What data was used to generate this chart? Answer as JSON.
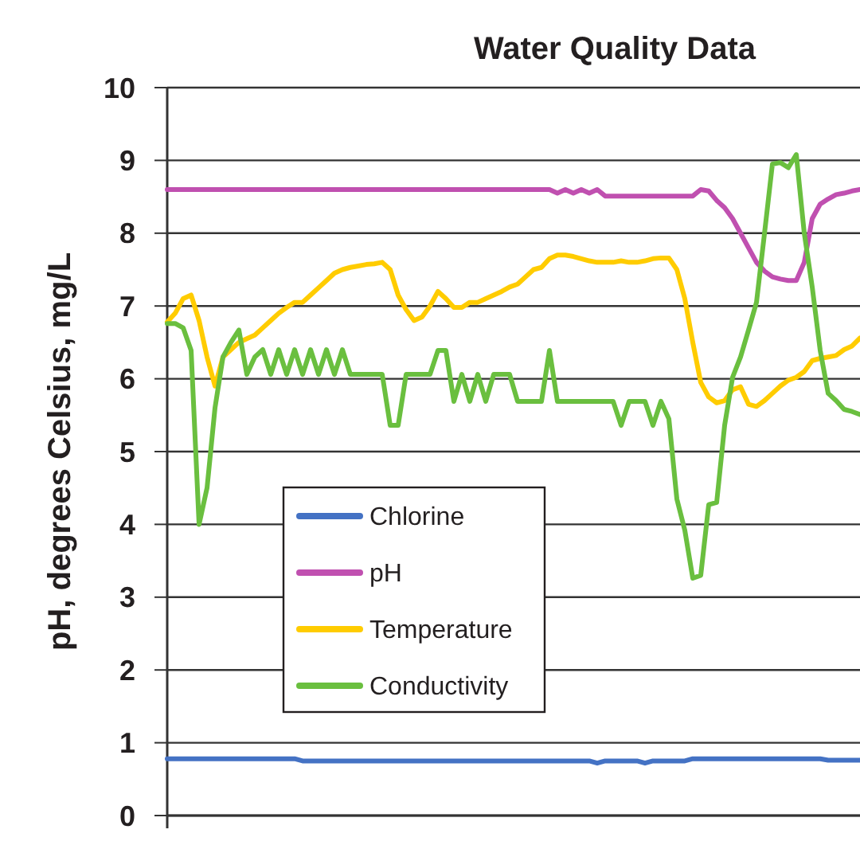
{
  "chart_data": {
    "type": "line",
    "title": "Water Quality Data",
    "ylabel": "pH, degrees Celsius, mg/L",
    "categories": [
      null,
      null,
      null,
      null,
      null,
      null,
      null,
      null,
      null,
      null,
      null,
      null,
      null,
      null,
      null,
      null,
      null,
      null,
      null,
      null,
      null,
      null,
      null,
      null,
      null,
      null,
      null,
      null,
      null,
      null,
      null,
      null,
      null,
      null,
      null,
      null,
      null,
      null,
      null,
      null,
      null,
      null,
      null,
      null,
      null,
      null,
      null,
      null,
      null,
      null,
      null,
      null,
      null,
      null,
      null,
      null,
      null,
      null,
      null,
      null,
      null,
      null,
      null,
      null,
      null,
      null,
      null,
      null,
      null,
      null,
      null,
      null,
      null,
      null,
      null,
      null,
      null,
      null,
      null,
      null,
      null,
      null,
      null,
      null,
      null,
      null,
      null,
      null
    ],
    "series": [
      {
        "name": "Chlorine",
        "color": "#4472c4",
        "values": [
          0.78,
          0.78,
          0.78,
          0.78,
          0.78,
          0.78,
          0.78,
          0.78,
          0.78,
          0.78,
          0.78,
          0.78,
          0.78,
          0.78,
          0.78,
          0.78,
          0.78,
          0.75,
          0.75,
          0.75,
          0.75,
          0.75,
          0.75,
          0.75,
          0.75,
          0.75,
          0.75,
          0.75,
          0.75,
          0.75,
          0.75,
          0.75,
          0.75,
          0.75,
          0.75,
          0.75,
          0.75,
          0.75,
          0.75,
          0.75,
          0.75,
          0.75,
          0.75,
          0.75,
          0.75,
          0.75,
          0.75,
          0.75,
          0.75,
          0.75,
          0.75,
          0.75,
          0.75,
          0.75,
          0.72,
          0.75,
          0.75,
          0.75,
          0.75,
          0.75,
          0.72,
          0.75,
          0.75,
          0.75,
          0.75,
          0.75,
          0.78,
          0.78,
          0.78,
          0.78,
          0.78,
          0.78,
          0.78,
          0.78,
          0.78,
          0.78,
          0.78,
          0.78,
          0.78,
          0.78,
          0.78,
          0.78,
          0.78,
          0.76,
          0.76,
          0.76,
          0.76,
          0.76
        ]
      },
      {
        "name": "pH",
        "color": "#c050b0",
        "values": [
          8.6,
          8.6,
          8.6,
          8.6,
          8.6,
          8.6,
          8.6,
          8.6,
          8.6,
          8.6,
          8.6,
          8.6,
          8.6,
          8.6,
          8.6,
          8.6,
          8.6,
          8.6,
          8.6,
          8.6,
          8.6,
          8.6,
          8.6,
          8.6,
          8.6,
          8.6,
          8.6,
          8.6,
          8.6,
          8.6,
          8.6,
          8.6,
          8.6,
          8.6,
          8.6,
          8.6,
          8.6,
          8.6,
          8.6,
          8.6,
          8.6,
          8.6,
          8.6,
          8.6,
          8.6,
          8.6,
          8.6,
          8.6,
          8.6,
          8.55,
          8.6,
          8.55,
          8.6,
          8.55,
          8.6,
          8.51,
          8.51,
          8.51,
          8.51,
          8.51,
          8.51,
          8.51,
          8.51,
          8.51,
          8.51,
          8.51,
          8.51,
          8.6,
          8.58,
          8.45,
          8.35,
          8.2,
          8.0,
          7.8,
          7.6,
          7.48,
          7.4,
          7.37,
          7.35,
          7.35,
          7.6,
          8.2,
          8.4,
          8.47,
          8.53,
          8.55,
          8.58,
          8.6
        ]
      },
      {
        "name": "Temperature",
        "color": "#ffcc00",
        "values": [
          6.78,
          6.9,
          7.1,
          7.15,
          6.8,
          6.3,
          5.9,
          6.3,
          6.4,
          6.5,
          6.55,
          6.6,
          6.7,
          6.8,
          6.9,
          6.98,
          7.05,
          7.05,
          7.15,
          7.25,
          7.35,
          7.45,
          7.5,
          7.53,
          7.55,
          7.57,
          7.58,
          7.6,
          7.5,
          7.15,
          6.95,
          6.8,
          6.85,
          7.0,
          7.2,
          7.1,
          6.98,
          6.98,
          7.05,
          7.05,
          7.1,
          7.15,
          7.2,
          7.26,
          7.3,
          7.4,
          7.5,
          7.53,
          7.65,
          7.7,
          7.7,
          7.68,
          7.65,
          7.62,
          7.6,
          7.6,
          7.6,
          7.62,
          7.6,
          7.6,
          7.62,
          7.65,
          7.66,
          7.66,
          7.5,
          7.1,
          6.5,
          5.95,
          5.75,
          5.67,
          5.7,
          5.85,
          5.89,
          5.65,
          5.62,
          5.7,
          5.8,
          5.9,
          5.98,
          6.02,
          6.1,
          6.25,
          6.28,
          6.3,
          6.32,
          6.4,
          6.45,
          6.56
        ]
      },
      {
        "name": "Conductivity",
        "color": "#6abf3f",
        "values": [
          6.76,
          6.76,
          6.7,
          6.39,
          4.0,
          4.5,
          5.6,
          6.3,
          6.5,
          6.67,
          6.06,
          6.3,
          6.4,
          6.06,
          6.4,
          6.06,
          6.4,
          6.06,
          6.4,
          6.06,
          6.4,
          6.06,
          6.4,
          6.06,
          6.06,
          6.06,
          6.06,
          6.06,
          5.36,
          5.36,
          6.06,
          6.06,
          6.06,
          6.06,
          6.39,
          6.39,
          5.69,
          6.06,
          5.69,
          6.06,
          5.69,
          6.06,
          6.06,
          6.06,
          5.69,
          5.69,
          5.69,
          5.69,
          6.39,
          5.69,
          5.69,
          5.69,
          5.69,
          5.69,
          5.69,
          5.69,
          5.69,
          5.36,
          5.69,
          5.69,
          5.69,
          5.36,
          5.69,
          5.45,
          4.35,
          3.92,
          3.26,
          3.3,
          4.27,
          4.3,
          5.36,
          6.02,
          6.3,
          6.67,
          7.05,
          7.99,
          8.95,
          8.97,
          8.9,
          9.08,
          8.0,
          7.26,
          6.39,
          5.8,
          5.7,
          5.58,
          5.55,
          5.51
        ]
      }
    ],
    "ylim": [
      0,
      10
    ],
    "yticks": [
      0,
      1,
      2,
      3,
      4,
      5,
      6,
      7,
      8,
      9,
      10
    ],
    "grid": "y",
    "legend": "bottom left",
    "line_style": "solid"
  }
}
